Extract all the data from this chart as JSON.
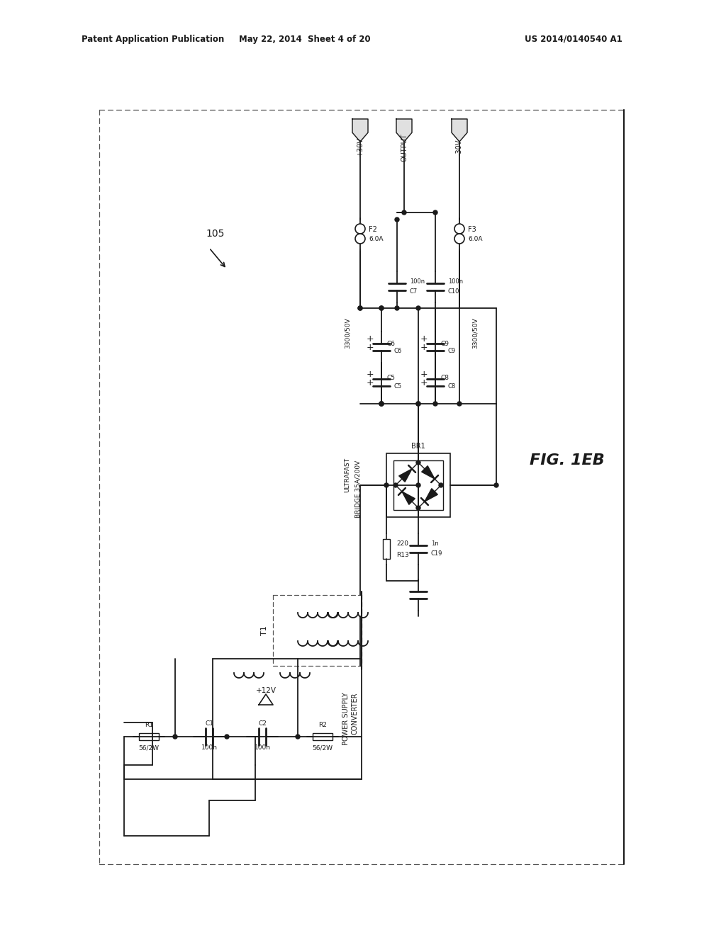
{
  "bg_color": "#ffffff",
  "page_width": 10.24,
  "page_height": 13.2,
  "text_color": "#1a1a1a",
  "line_color": "#1a1a1a",
  "dashed_color": "#555555",
  "header_left": "Patent Application Publication",
  "header_mid": "May 22, 2014  Sheet 4 of 20",
  "header_right": "US 2014/0140540 A1",
  "figure_label": "FIG. 1EB",
  "diagram_label": "105"
}
